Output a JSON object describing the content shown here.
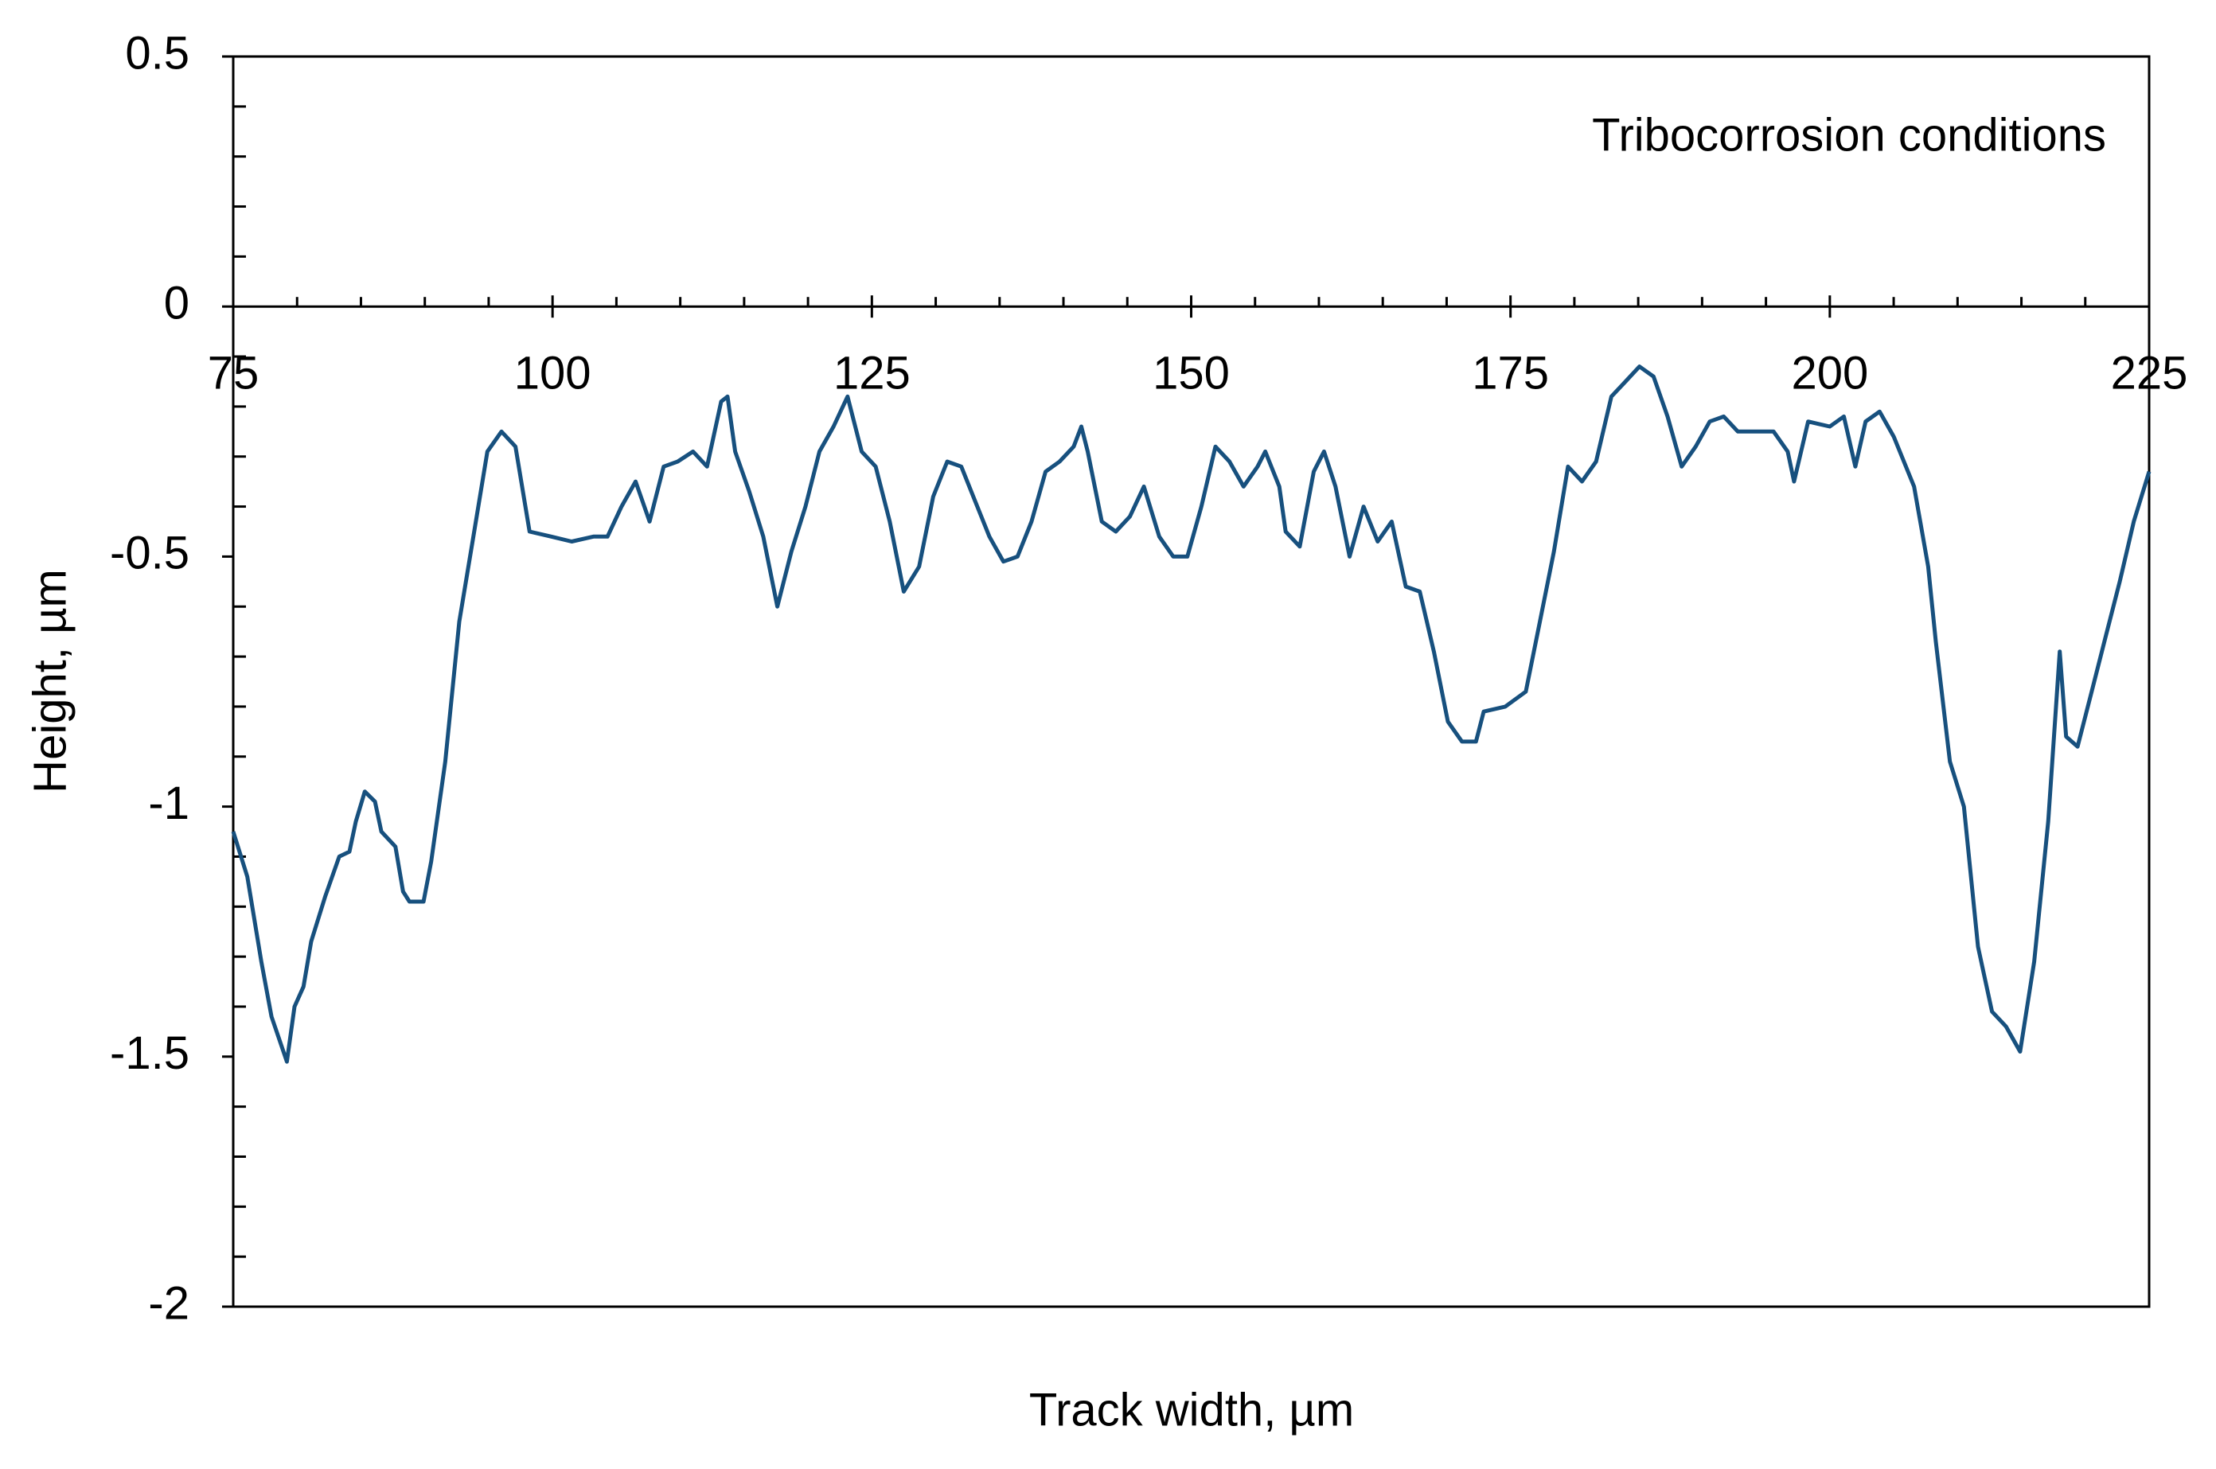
{
  "chart_data": {
    "type": "line",
    "annotation": "Tribocorrosion conditions",
    "x_label": "Track width, µm",
    "y_label": "Height, µm",
    "color": "#17507e",
    "xlim": [
      75,
      225
    ],
    "ylim": [
      -2,
      0.5
    ],
    "xticks": [
      75,
      100,
      125,
      150,
      175,
      200,
      225
    ],
    "yticks": [
      -2,
      -1.5,
      -1,
      -0.5,
      0,
      0.5
    ],
    "xminorticks": [
      80,
      85,
      90,
      95,
      105,
      110,
      115,
      120,
      130,
      135,
      140,
      145,
      155,
      160,
      165,
      170,
      180,
      185,
      190,
      195,
      205,
      210,
      215,
      220
    ],
    "yminorticks": [
      -1.9,
      -1.8,
      -1.7,
      -1.6,
      -1.4,
      -1.3,
      -1.2,
      -1.1,
      -0.9,
      -0.8,
      -0.7,
      -0.6,
      -0.4,
      -0.3,
      -0.2,
      -0.1,
      0.1,
      0.2,
      0.3,
      0.4
    ],
    "x": [
      75.0,
      76.1,
      77.2,
      78.0,
      79.2,
      79.8,
      80.5,
      81.1,
      82.2,
      83.3,
      84.1,
      84.6,
      85.3,
      86.1,
      86.6,
      87.7,
      88.3,
      88.8,
      89.9,
      90.5,
      91.6,
      92.7,
      93.8,
      94.9,
      96.0,
      97.1,
      98.2,
      99.9,
      101.5,
      103.2,
      104.3,
      105.4,
      106.5,
      107.6,
      108.7,
      109.8,
      111.0,
      112.1,
      113.2,
      113.7,
      114.3,
      115.4,
      116.5,
      117.6,
      118.7,
      119.8,
      120.9,
      122.0,
      123.1,
      124.2,
      125.3,
      126.4,
      127.5,
      128.7,
      129.8,
      130.9,
      132.0,
      133.1,
      134.2,
      135.3,
      136.4,
      137.5,
      138.6,
      139.7,
      140.8,
      141.4,
      141.9,
      143.0,
      144.1,
      145.2,
      146.3,
      147.5,
      148.6,
      149.7,
      150.8,
      151.9,
      153.0,
      154.1,
      155.2,
      155.8,
      156.9,
      157.4,
      158.5,
      159.6,
      160.4,
      161.3,
      162.4,
      163.5,
      164.6,
      165.7,
      166.8,
      167.9,
      169.0,
      170.1,
      171.2,
      172.3,
      172.9,
      174.6,
      176.2,
      177.3,
      178.4,
      179.5,
      180.6,
      181.7,
      182.9,
      184.0,
      185.1,
      186.2,
      187.3,
      188.4,
      189.5,
      190.6,
      191.7,
      192.8,
      193.9,
      195.6,
      196.7,
      197.2,
      198.3,
      200.0,
      201.1,
      202.0,
      202.8,
      203.9,
      205.0,
      206.6,
      207.7,
      208.3,
      209.4,
      210.5,
      211.6,
      212.7,
      213.8,
      214.9,
      216.0,
      217.1,
      218.0,
      218.5,
      219.4,
      220.5,
      221.6,
      222.7,
      223.8,
      225.0
    ],
    "values": [
      -1.05,
      -1.14,
      -1.31,
      -1.42,
      -1.51,
      -1.4,
      -1.36,
      -1.27,
      -1.18,
      -1.1,
      -1.09,
      -1.03,
      -0.97,
      -0.99,
      -1.05,
      -1.08,
      -1.17,
      -1.19,
      -1.19,
      -1.11,
      -0.91,
      -0.63,
      -0.46,
      -0.29,
      -0.25,
      -0.28,
      -0.45,
      -0.46,
      -0.47,
      -0.46,
      -0.46,
      -0.4,
      -0.35,
      -0.43,
      -0.32,
      -0.31,
      -0.29,
      -0.32,
      -0.19,
      -0.18,
      -0.29,
      -0.37,
      -0.46,
      -0.6,
      -0.49,
      -0.4,
      -0.29,
      -0.24,
      -0.18,
      -0.29,
      -0.32,
      -0.43,
      -0.57,
      -0.52,
      -0.38,
      -0.31,
      -0.32,
      -0.39,
      -0.46,
      -0.51,
      -0.5,
      -0.43,
      -0.33,
      -0.31,
      -0.28,
      -0.24,
      -0.29,
      -0.43,
      -0.45,
      -0.42,
      -0.36,
      -0.46,
      -0.5,
      -0.5,
      -0.4,
      -0.28,
      -0.31,
      -0.36,
      -0.32,
      -0.29,
      -0.36,
      -0.45,
      -0.48,
      -0.33,
      -0.29,
      -0.36,
      -0.5,
      -0.4,
      -0.47,
      -0.43,
      -0.56,
      -0.57,
      -0.69,
      -0.83,
      -0.87,
      -0.87,
      -0.81,
      -0.8,
      -0.77,
      -0.63,
      -0.49,
      -0.32,
      -0.35,
      -0.31,
      -0.18,
      -0.15,
      -0.12,
      -0.14,
      -0.22,
      -0.32,
      -0.28,
      -0.23,
      -0.22,
      -0.25,
      -0.25,
      -0.25,
      -0.29,
      -0.35,
      -0.23,
      -0.24,
      -0.22,
      -0.32,
      -0.23,
      -0.21,
      -0.26,
      -0.36,
      -0.52,
      -0.67,
      -0.91,
      -1.0,
      -1.28,
      -1.41,
      -1.44,
      -1.49,
      -1.31,
      -1.03,
      -0.69,
      -0.86,
      -0.88,
      -0.77,
      -0.66,
      -0.55,
      -0.43,
      -0.33
    ]
  }
}
